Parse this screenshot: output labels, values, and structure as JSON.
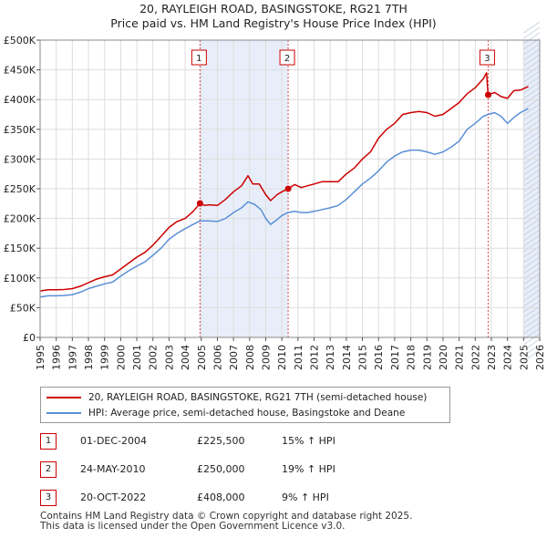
{
  "chart_data": {
    "type": "line",
    "title": "20, RAYLEIGH ROAD, BASINGSTOKE, RG21 7TH",
    "subtitle": "Price paid vs. HM Land Registry's House Price Index (HPI)",
    "xlim": [
      1995,
      2026
    ],
    "ylim": [
      0,
      500000
    ],
    "yticks": [
      0,
      50000,
      100000,
      150000,
      200000,
      250000,
      300000,
      350000,
      400000,
      450000,
      500000
    ],
    "ytick_labels": [
      "£0",
      "£50K",
      "£100K",
      "£150K",
      "£200K",
      "£250K",
      "£300K",
      "£350K",
      "£400K",
      "£450K",
      "£500K"
    ],
    "xticks": [
      "1995",
      "1996",
      "1997",
      "1998",
      "1999",
      "2000",
      "2001",
      "2002",
      "2003",
      "2004",
      "2005",
      "2006",
      "2007",
      "2008",
      "2009",
      "2010",
      "2011",
      "2012",
      "2013",
      "2014",
      "2015",
      "2016",
      "2017",
      "2018",
      "2019",
      "2020",
      "2021",
      "2022",
      "2023",
      "2024",
      "2025",
      "2026"
    ],
    "series": [
      {
        "name": "20, RAYLEIGH ROAD, BASINGSTOKE, RG21 7TH (semi-detached house)",
        "color": "#cc0000",
        "points": [
          [
            1995.0,
            78000
          ],
          [
            1995.5,
            80000
          ],
          [
            1996.0,
            80000
          ],
          [
            1996.5,
            80500
          ],
          [
            1997.0,
            82000
          ],
          [
            1997.5,
            86000
          ],
          [
            1998.0,
            92000
          ],
          [
            1998.5,
            98000
          ],
          [
            1999.0,
            102000
          ],
          [
            1999.5,
            105000
          ],
          [
            2000.0,
            115000
          ],
          [
            2000.5,
            125000
          ],
          [
            2001.0,
            135000
          ],
          [
            2001.5,
            143000
          ],
          [
            2002.0,
            155000
          ],
          [
            2002.5,
            170000
          ],
          [
            2003.0,
            185000
          ],
          [
            2003.5,
            195000
          ],
          [
            2004.0,
            200000
          ],
          [
            2004.5,
            212000
          ],
          [
            2004.92,
            225500
          ],
          [
            2005.2,
            222000
          ],
          [
            2005.5,
            223000
          ],
          [
            2006.0,
            222000
          ],
          [
            2006.5,
            232000
          ],
          [
            2007.0,
            245000
          ],
          [
            2007.5,
            255000
          ],
          [
            2007.9,
            272000
          ],
          [
            2008.2,
            258000
          ],
          [
            2008.6,
            258000
          ],
          [
            2009.0,
            240000
          ],
          [
            2009.3,
            230000
          ],
          [
            2009.7,
            240000
          ],
          [
            2010.0,
            245000
          ],
          [
            2010.39,
            250000
          ],
          [
            2010.8,
            257000
          ],
          [
            2011.2,
            252000
          ],
          [
            2011.6,
            255000
          ],
          [
            2012.0,
            258000
          ],
          [
            2012.5,
            262000
          ],
          [
            2013.0,
            262000
          ],
          [
            2013.5,
            262000
          ],
          [
            2014.0,
            275000
          ],
          [
            2014.5,
            285000
          ],
          [
            2015.0,
            300000
          ],
          [
            2015.5,
            312000
          ],
          [
            2016.0,
            335000
          ],
          [
            2016.5,
            350000
          ],
          [
            2017.0,
            360000
          ],
          [
            2017.5,
            375000
          ],
          [
            2018.0,
            378000
          ],
          [
            2018.5,
            380000
          ],
          [
            2019.0,
            378000
          ],
          [
            2019.5,
            372000
          ],
          [
            2020.0,
            375000
          ],
          [
            2020.5,
            385000
          ],
          [
            2021.0,
            395000
          ],
          [
            2021.5,
            410000
          ],
          [
            2022.0,
            420000
          ],
          [
            2022.5,
            435000
          ],
          [
            2022.7,
            445000
          ],
          [
            2022.8,
            408000
          ],
          [
            2023.2,
            412000
          ],
          [
            2023.6,
            405000
          ],
          [
            2024.0,
            402000
          ],
          [
            2024.4,
            415000
          ],
          [
            2024.8,
            416000
          ],
          [
            2025.3,
            422000
          ]
        ]
      },
      {
        "name": "HPI: Average price, semi-detached house, Basingstoke and Deane",
        "color": "#5b8fd6",
        "points": [
          [
            1995.0,
            68000
          ],
          [
            1995.5,
            70000
          ],
          [
            1996.0,
            70000
          ],
          [
            1996.5,
            70500
          ],
          [
            1997.0,
            72000
          ],
          [
            1997.5,
            76000
          ],
          [
            1998.0,
            82000
          ],
          [
            1998.5,
            86000
          ],
          [
            1999.0,
            90000
          ],
          [
            1999.5,
            93000
          ],
          [
            2000.0,
            103000
          ],
          [
            2000.5,
            112000
          ],
          [
            2001.0,
            120000
          ],
          [
            2001.5,
            127000
          ],
          [
            2002.0,
            138000
          ],
          [
            2002.5,
            150000
          ],
          [
            2003.0,
            165000
          ],
          [
            2003.5,
            175000
          ],
          [
            2004.0,
            183000
          ],
          [
            2004.5,
            190000
          ],
          [
            2004.92,
            196000
          ],
          [
            2005.5,
            196000
          ],
          [
            2006.0,
            195000
          ],
          [
            2006.5,
            200000
          ],
          [
            2007.0,
            210000
          ],
          [
            2007.5,
            218000
          ],
          [
            2007.9,
            228000
          ],
          [
            2008.3,
            224000
          ],
          [
            2008.7,
            215000
          ],
          [
            2009.0,
            200000
          ],
          [
            2009.3,
            190000
          ],
          [
            2009.7,
            198000
          ],
          [
            2010.0,
            205000
          ],
          [
            2010.39,
            210000
          ],
          [
            2010.8,
            212000
          ],
          [
            2011.2,
            210000
          ],
          [
            2011.6,
            210000
          ],
          [
            2012.0,
            212000
          ],
          [
            2012.5,
            215000
          ],
          [
            2013.0,
            218000
          ],
          [
            2013.5,
            222000
          ],
          [
            2014.0,
            232000
          ],
          [
            2014.5,
            245000
          ],
          [
            2015.0,
            258000
          ],
          [
            2015.5,
            268000
          ],
          [
            2016.0,
            280000
          ],
          [
            2016.5,
            295000
          ],
          [
            2017.0,
            305000
          ],
          [
            2017.5,
            312000
          ],
          [
            2018.0,
            315000
          ],
          [
            2018.5,
            315000
          ],
          [
            2019.0,
            312000
          ],
          [
            2019.5,
            308000
          ],
          [
            2020.0,
            312000
          ],
          [
            2020.5,
            320000
          ],
          [
            2021.0,
            330000
          ],
          [
            2021.5,
            350000
          ],
          [
            2022.0,
            360000
          ],
          [
            2022.5,
            372000
          ],
          [
            2022.8,
            375000
          ],
          [
            2023.2,
            378000
          ],
          [
            2023.6,
            372000
          ],
          [
            2024.0,
            360000
          ],
          [
            2024.4,
            370000
          ],
          [
            2024.8,
            378000
          ],
          [
            2025.3,
            385000
          ]
        ]
      }
    ],
    "sales": [
      {
        "label": "1",
        "x": 2004.92,
        "value": 225500
      },
      {
        "label": "2",
        "x": 2010.39,
        "value": 250000
      },
      {
        "label": "3",
        "x": 2022.8,
        "value": 408000
      }
    ],
    "shaded_periods": [
      [
        2004.92,
        2010.39
      ],
      [
        2025.0,
        2026.0
      ]
    ],
    "grid": true
  },
  "legend": {
    "property_label": "20, RAYLEIGH ROAD, BASINGSTOKE, RG21 7TH (semi-detached house)",
    "hpi_label": "HPI: Average price, semi-detached house, Basingstoke and Deane",
    "property_color": "#cc0000",
    "hpi_color": "#5b8fd6"
  },
  "transactions": [
    {
      "num": "1",
      "date": "01-DEC-2004",
      "price": "£225,500",
      "hpi": "15% ↑ HPI"
    },
    {
      "num": "2",
      "date": "24-MAY-2010",
      "price": "£250,000",
      "hpi": "19% ↑ HPI"
    },
    {
      "num": "3",
      "date": "20-OCT-2022",
      "price": "£408,000",
      "hpi": "9% ↑ HPI"
    }
  ],
  "footer": {
    "line1": "Contains HM Land Registry data © Crown copyright and database right 2025.",
    "line2": "This data is licensed under the Open Government Licence v3.0."
  }
}
